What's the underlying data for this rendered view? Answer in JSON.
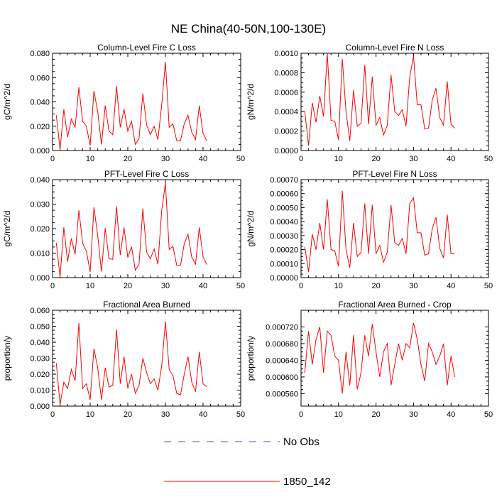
{
  "title": "NE China(40-50N,100-130E)",
  "colors": {
    "series": "#ff0000",
    "obs": "#4a4ac8",
    "axis": "#000000"
  },
  "legend": {
    "items": [
      {
        "label": "No Obs",
        "style": "dashed",
        "color": "#4a4ac8"
      },
      {
        "label": "1850_142",
        "style": "solid",
        "color": "#ff0000"
      }
    ]
  },
  "chart_data": [
    {
      "type": "line",
      "title": "Column-Level Fire C Loss",
      "ylabel": "gC/m^2/d",
      "xlim": [
        0,
        50
      ],
      "ylim": [
        0,
        0.08
      ],
      "xticks": [
        0,
        10,
        20,
        30,
        40,
        50
      ],
      "xtick_labels": [
        "0",
        "10",
        "20",
        "30",
        "40",
        "50"
      ],
      "yticks": [
        0,
        0.02,
        0.04,
        0.06,
        0.08
      ],
      "ytick_labels": [
        "0.000",
        "0.020",
        "0.040",
        "0.060",
        "0.080"
      ],
      "x": [
        1,
        2,
        3,
        4,
        5,
        6,
        7,
        8,
        9,
        10,
        11,
        12,
        13,
        14,
        15,
        16,
        17,
        18,
        19,
        20,
        21,
        22,
        23,
        24,
        25,
        26,
        27,
        28,
        29,
        30,
        31,
        32,
        33,
        34,
        35,
        36,
        37,
        38,
        39,
        40,
        41
      ],
      "series": [
        {
          "name": "1850_142",
          "values": [
            0.029,
            0.001,
            0.034,
            0.011,
            0.026,
            0.019,
            0.052,
            0.024,
            0.02,
            0.004,
            0.049,
            0.032,
            0.005,
            0.037,
            0.016,
            0.013,
            0.053,
            0.019,
            0.034,
            0.016,
            0.024,
            0.005,
            0.01,
            0.047,
            0.021,
            0.013,
            0.02,
            0.009,
            0.037,
            0.073,
            0.019,
            0.022,
            0.008,
            0.008,
            0.022,
            0.029,
            0.015,
            0.009,
            0.037,
            0.014,
            0.008
          ]
        }
      ]
    },
    {
      "type": "line",
      "title": "Column-Level Fire N Loss",
      "ylabel": "gN/m^2/d",
      "xlim": [
        0,
        50
      ],
      "ylim": [
        0,
        0.001
      ],
      "xticks": [
        0,
        10,
        20,
        30,
        40,
        50
      ],
      "xtick_labels": [
        "0",
        "10",
        "20",
        "30",
        "40",
        "50"
      ],
      "yticks": [
        0,
        0.0002,
        0.0004,
        0.0006,
        0.0008,
        0.001
      ],
      "ytick_labels": [
        "0.0000",
        "0.0002",
        "0.0004",
        "0.0006",
        "0.0008",
        "0.0010"
      ],
      "x": [
        1,
        2,
        3,
        4,
        5,
        6,
        7,
        8,
        9,
        10,
        11,
        12,
        13,
        14,
        15,
        16,
        17,
        18,
        19,
        20,
        21,
        22,
        23,
        24,
        25,
        26,
        27,
        28,
        29,
        30,
        31,
        32,
        33,
        34,
        35,
        36,
        37,
        38,
        39,
        40,
        41
      ],
      "series": [
        {
          "name": "1850_142",
          "values": [
            0.0004,
            5e-05,
            0.00049,
            0.00029,
            0.00056,
            0.00035,
            0.001,
            0.00031,
            0.0003,
            0.00011,
            0.00094,
            0.0004,
            0.0001,
            0.00062,
            0.00025,
            0.00028,
            0.00088,
            0.00027,
            0.00076,
            0.00026,
            0.00034,
            0.00016,
            0.00026,
            0.00078,
            0.0004,
            0.00036,
            0.00042,
            0.00025,
            0.00076,
            0.00097,
            0.00047,
            0.00047,
            0.00022,
            0.00023,
            0.00052,
            0.00064,
            0.00034,
            0.00026,
            0.00071,
            0.00027,
            0.00023
          ]
        }
      ]
    },
    {
      "type": "line",
      "title": "PFT-Level Fire C Loss",
      "ylabel": "gC/m^2/d",
      "xlim": [
        0,
        50
      ],
      "ylim": [
        0,
        0.04
      ],
      "xticks": [
        0,
        10,
        20,
        30,
        40,
        50
      ],
      "xtick_labels": [
        "0",
        "10",
        "20",
        "30",
        "40",
        "50"
      ],
      "yticks": [
        0,
        0.01,
        0.02,
        0.03,
        0.04
      ],
      "ytick_labels": [
        "0.000",
        "0.010",
        "0.020",
        "0.030",
        "0.040"
      ],
      "x": [
        1,
        2,
        3,
        4,
        5,
        6,
        7,
        8,
        9,
        10,
        11,
        12,
        13,
        14,
        15,
        16,
        17,
        18,
        19,
        20,
        21,
        22,
        23,
        24,
        25,
        26,
        27,
        28,
        29,
        30,
        31,
        32,
        33,
        34,
        35,
        36,
        37,
        38,
        39,
        40,
        41
      ],
      "series": [
        {
          "name": "1850_142",
          "values": [
            0.0142,
            0.0002,
            0.0205,
            0.0065,
            0.016,
            0.0095,
            0.0275,
            0.014,
            0.0108,
            0.0023,
            0.0287,
            0.0172,
            0.0025,
            0.0202,
            0.0077,
            0.0075,
            0.0292,
            0.0092,
            0.0205,
            0.0082,
            0.0126,
            0.003,
            0.0055,
            0.0282,
            0.0105,
            0.0077,
            0.0117,
            0.0055,
            0.0272,
            0.0385,
            0.0115,
            0.0127,
            0.005,
            0.005,
            0.0138,
            0.0177,
            0.0083,
            0.0055,
            0.0205,
            0.0085,
            0.0053
          ]
        }
      ]
    },
    {
      "type": "line",
      "title": "PFT-Level Fire N Loss",
      "ylabel": "gN/m^2/d",
      "xlim": [
        0,
        50
      ],
      "ylim": [
        0,
        0.0007
      ],
      "xticks": [
        0,
        10,
        20,
        30,
        40,
        50
      ],
      "xtick_labels": [
        "0",
        "10",
        "20",
        "30",
        "40",
        "50"
      ],
      "yticks": [
        0,
        0.0001,
        0.0002,
        0.0003,
        0.0004,
        0.0005,
        0.0006,
        0.0007
      ],
      "ytick_labels": [
        "0.00000",
        "0.00010",
        "0.00020",
        "0.00030",
        "0.00040",
        "0.00050",
        "0.00060",
        "0.00070"
      ],
      "x": [
        1,
        2,
        3,
        4,
        5,
        6,
        7,
        8,
        9,
        10,
        11,
        12,
        13,
        14,
        15,
        16,
        17,
        18,
        19,
        20,
        21,
        22,
        23,
        24,
        25,
        26,
        27,
        28,
        29,
        30,
        31,
        32,
        33,
        34,
        35,
        36,
        37,
        38,
        39,
        40,
        41
      ],
      "series": [
        {
          "name": "1850_142",
          "values": [
            0.00022,
            4e-05,
            0.00031,
            0.0002,
            0.00039,
            0.0002,
            0.00056,
            0.0002,
            0.00019,
            8e-05,
            0.00062,
            0.0002,
            7e-05,
            0.00039,
            0.00015,
            0.00018,
            0.00053,
            0.00017,
            0.00052,
            0.00017,
            0.00023,
            0.00011,
            0.00018,
            0.00052,
            0.00025,
            0.00023,
            0.00028,
            0.00017,
            0.00053,
            0.00057,
            0.00032,
            0.00032,
            0.00016,
            0.00017,
            0.00035,
            0.00043,
            0.00021,
            0.00014,
            0.00045,
            0.00017,
            0.00017
          ]
        }
      ]
    },
    {
      "type": "line",
      "title": "Fractional Area Burned",
      "ylabel": "proportion/y",
      "xlim": [
        0,
        50
      ],
      "ylim": [
        0,
        0.06
      ],
      "xticks": [
        0,
        10,
        20,
        30,
        40,
        50
      ],
      "xtick_labels": [
        "0",
        "10",
        "20",
        "30",
        "40",
        "50"
      ],
      "yticks": [
        0,
        0.01,
        0.02,
        0.03,
        0.04,
        0.05,
        0.06
      ],
      "ytick_labels": [
        "0.000",
        "0.010",
        "0.020",
        "0.030",
        "0.040",
        "0.050",
        "0.060"
      ],
      "x": [
        1,
        2,
        3,
        4,
        5,
        6,
        7,
        8,
        9,
        10,
        11,
        12,
        13,
        14,
        15,
        16,
        17,
        18,
        19,
        20,
        21,
        22,
        23,
        24,
        25,
        26,
        27,
        28,
        29,
        30,
        31,
        32,
        33,
        34,
        35,
        36,
        37,
        38,
        39,
        40,
        41
      ],
      "series": [
        {
          "name": "1850_142",
          "values": [
            0.027,
            0.0008,
            0.015,
            0.011,
            0.023,
            0.016,
            0.052,
            0.011,
            0.014,
            0.004,
            0.036,
            0.024,
            0.004,
            0.024,
            0.012,
            0.013,
            0.048,
            0.014,
            0.031,
            0.011,
            0.02,
            0.008,
            0.013,
            0.03,
            0.021,
            0.014,
            0.017,
            0.01,
            0.025,
            0.053,
            0.023,
            0.019,
            0.008,
            0.007,
            0.02,
            0.031,
            0.015,
            0.009,
            0.034,
            0.014,
            0.012
          ]
        }
      ]
    },
    {
      "type": "line",
      "title": "Fractional Area Burned - Crop",
      "ylabel": "proportion/y",
      "xlim": [
        0,
        50
      ],
      "ylim": [
        0.00053,
        0.00076
      ],
      "xticks": [
        0,
        10,
        20,
        30,
        40,
        50
      ],
      "xtick_labels": [
        "0",
        "10",
        "20",
        "30",
        "40",
        "50"
      ],
      "yticks": [
        0.00056,
        0.0006,
        0.00064,
        0.00068,
        0.00072
      ],
      "ytick_labels": [
        "0.000560",
        "0.000600",
        "0.000640",
        "0.000680",
        "0.000720"
      ],
      "x": [
        1,
        2,
        3,
        4,
        5,
        6,
        7,
        8,
        9,
        10,
        11,
        12,
        13,
        14,
        15,
        16,
        17,
        18,
        19,
        20,
        21,
        22,
        23,
        24,
        25,
        26,
        27,
        28,
        29,
        30,
        31,
        32,
        33,
        34,
        35,
        36,
        37,
        38,
        39,
        40,
        41
      ],
      "series": [
        {
          "name": "1850_142",
          "values": [
            0.00061,
            0.00071,
            0.00063,
            0.00069,
            0.00072,
            0.00061,
            0.00071,
            0.0007,
            0.00065,
            0.00064,
            0.00056,
            0.00066,
            0.00058,
            0.0007,
            0.00057,
            0.00061,
            0.0007,
            0.00065,
            0.000727,
            0.00066,
            0.0006,
            0.00066,
            0.00068,
            0.00058,
            0.00063,
            0.00068,
            0.00064,
            0.00068,
            0.00067,
            0.00073,
            0.00069,
            0.00063,
            0.00059,
            0.00068,
            0.00066,
            0.00063,
            0.00065,
            0.00068,
            0.00058,
            0.00065,
            0.0006
          ]
        }
      ]
    }
  ]
}
